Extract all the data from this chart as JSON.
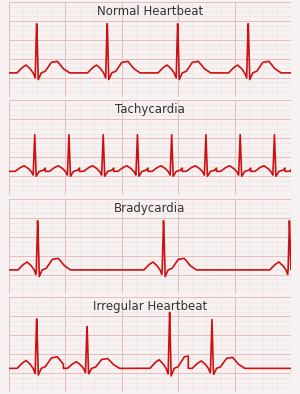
{
  "panels": [
    {
      "label": "Normal Heartbeat",
      "type": "normal"
    },
    {
      "label": "Tachycardia",
      "type": "tachy"
    },
    {
      "label": "Bradycardia",
      "type": "brady"
    },
    {
      "label": "Irregular Heartbeat",
      "type": "irregular"
    }
  ],
  "bg_color": "#f7f2f2",
  "grid_major_color": "#e8bcbc",
  "grid_minor_color": "#f2dede",
  "ecg_color": "#cc1111",
  "label_color": "#333333",
  "label_fontsize": 8.5
}
